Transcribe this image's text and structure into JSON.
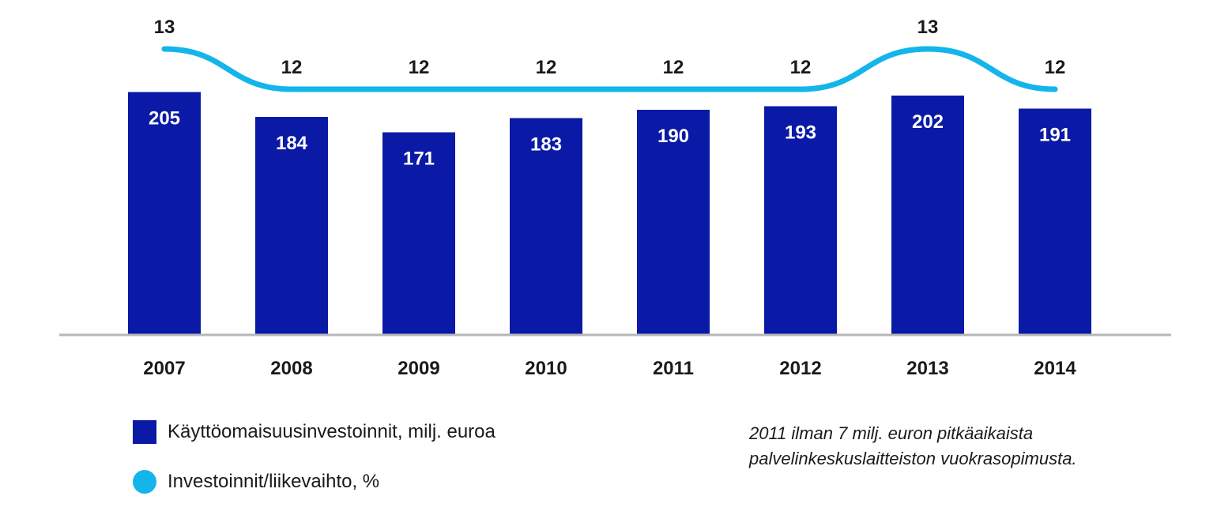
{
  "chart_data": {
    "type": "bar",
    "categories": [
      "2007",
      "2008",
      "2009",
      "2010",
      "2011",
      "2012",
      "2013",
      "2014"
    ],
    "series": [
      {
        "name": "Käyttöomaisuusinvestoinnit, milj. euroa",
        "type": "bar",
        "color": "#0a1aa6",
        "values": [
          205,
          184,
          171,
          183,
          190,
          193,
          202,
          191
        ]
      },
      {
        "name": "Investoinnit/liikevaihto, %",
        "type": "line",
        "color": "#13b5ea",
        "values": [
          13,
          12,
          12,
          12,
          12,
          12,
          13,
          12
        ]
      }
    ],
    "legend_position": "bottom-left",
    "grid": false
  },
  "legend": {
    "bar_label": "Käyttöomaisuusinvestoinnit, milj. euroa",
    "line_label": "Investoinnit/liikevaihto, %"
  },
  "note": {
    "line1": "2011 ilman 7 milj. euron pitkäaikaista",
    "line2": "palvelinkeskuslaitteiston vuokrasopimusta."
  }
}
